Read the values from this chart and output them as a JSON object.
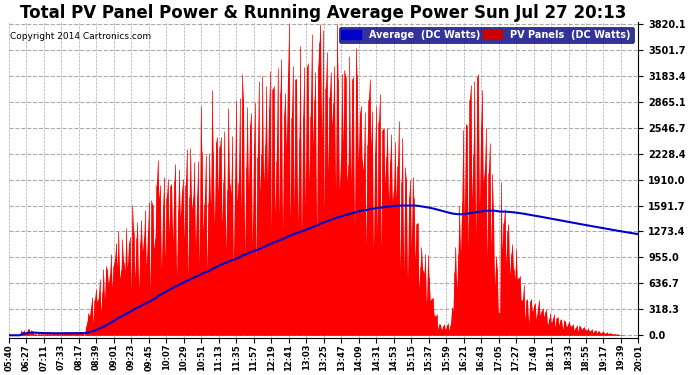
{
  "title": "Total PV Panel Power & Running Average Power Sun Jul 27 20:13",
  "copyright": "Copyright 2014 Cartronics.com",
  "yticks": [
    0.0,
    318.3,
    636.7,
    955.0,
    1273.4,
    1591.7,
    1910.0,
    2228.4,
    2546.7,
    2865.1,
    3183.4,
    3501.7,
    3820.1
  ],
  "ymax": 3820.1,
  "legend_labels": [
    "Average  (DC Watts)",
    "PV Panels  (DC Watts)"
  ],
  "legend_colors": [
    "#0000cc",
    "#cc0000"
  ],
  "background_color": "#ffffff",
  "grid_color": "#aaaaaa",
  "pv_color": "#ff0000",
  "avg_color": "#0000cc",
  "title_fontsize": 12,
  "xtick_labels": [
    "05:40",
    "06:27",
    "07:11",
    "07:33",
    "08:17",
    "08:39",
    "09:01",
    "09:23",
    "09:45",
    "10:07",
    "10:29",
    "10:51",
    "11:13",
    "11:35",
    "11:57",
    "12:19",
    "12:41",
    "13:03",
    "13:25",
    "13:47",
    "14:09",
    "14:31",
    "14:53",
    "15:15",
    "15:37",
    "15:59",
    "16:21",
    "16:43",
    "17:05",
    "17:27",
    "17:49",
    "18:11",
    "18:33",
    "18:55",
    "19:17",
    "19:39",
    "20:01"
  ]
}
